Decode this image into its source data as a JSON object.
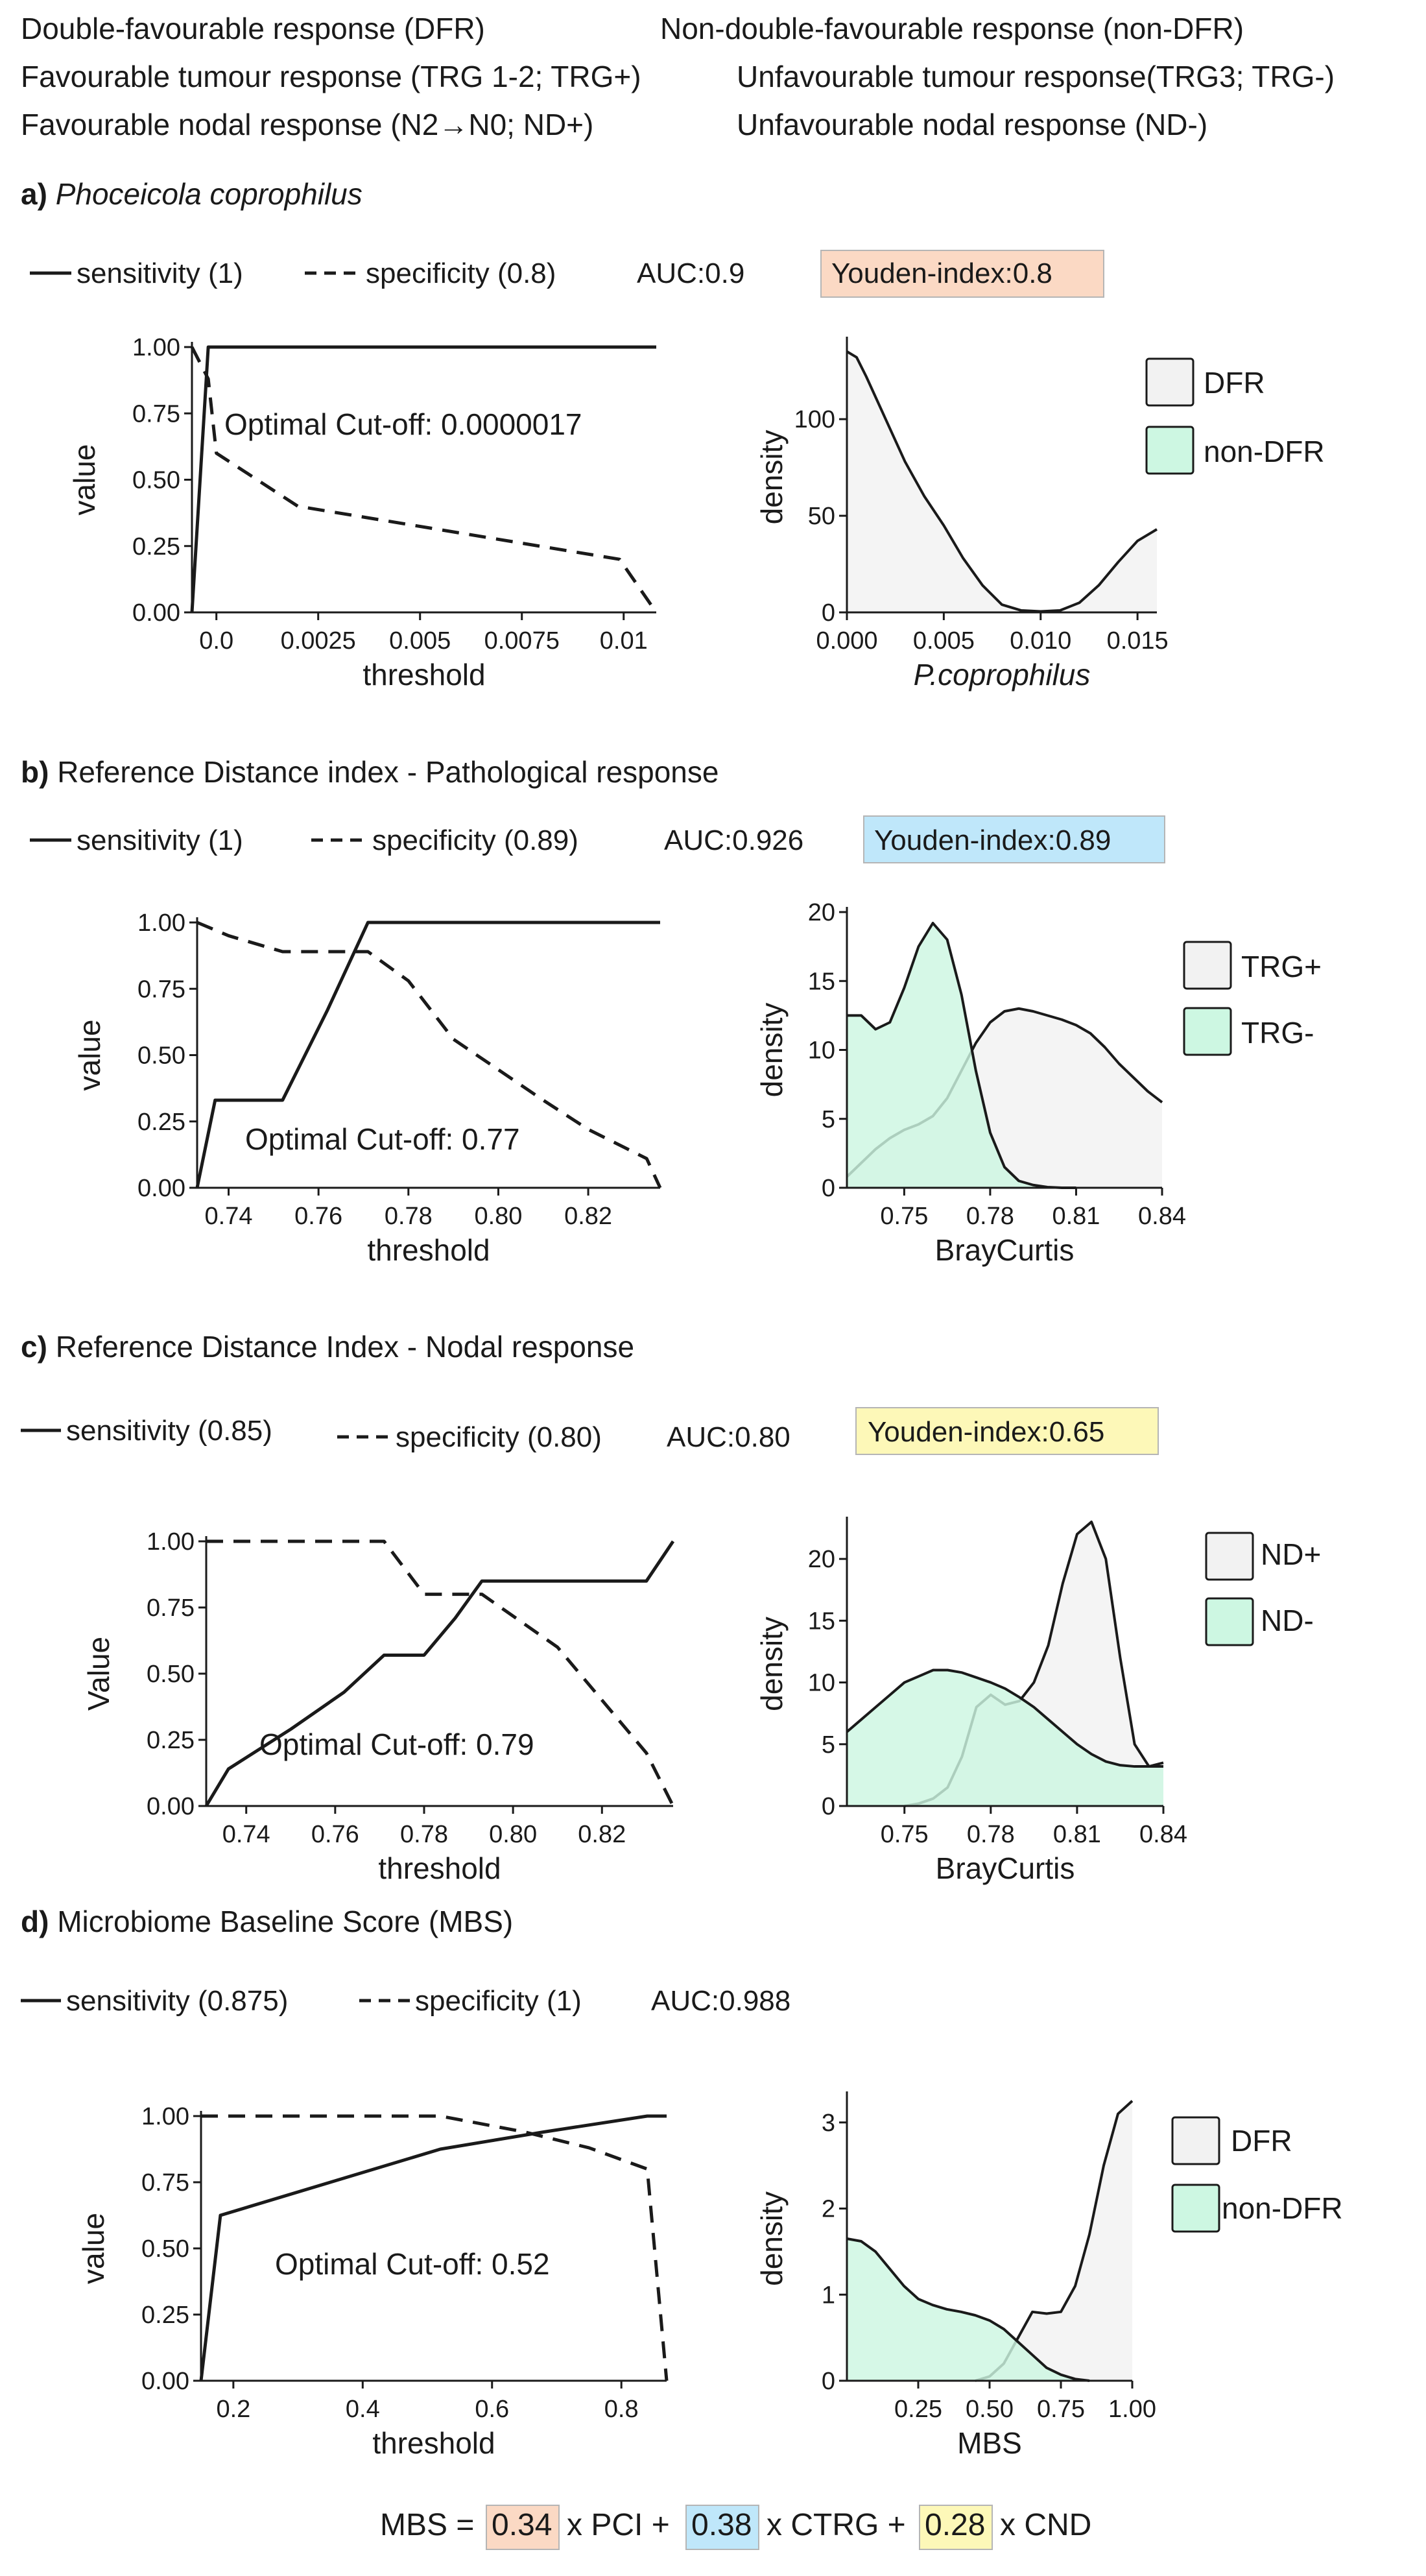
{
  "header": {
    "dfr": "Double-favourable response (DFR)",
    "non_dfr": "Non-double-favourable response (non-DFR)",
    "trg_pos": "Favourable tumour response (TRG 1-2; TRG+)",
    "trg_neg": "Unfavourable tumour response(TRG3; TRG-)",
    "nd_pos": "Favourable nodal response (N2→N0; ND+)",
    "nd_neg": "Unfavourable nodal response (ND-)"
  },
  "colors": {
    "group_a": "#f2f2f2",
    "group_b": "#cdf7e2",
    "youden_a": "#fbd9c4",
    "youden_b": "#bfe7fa",
    "youden_c": "#fdf8b8",
    "line": "#1a1a1a"
  },
  "panels": [
    {
      "letter": "a)",
      "title": "Phoceicola coprophilus",
      "title_italic": true,
      "sens_label": "sensitivity (1)",
      "spec_label": "specificity (0.8)",
      "auc": "AUC:0.9",
      "youden": "Youden-index:0.8",
      "youden_color": "#fbd9c4",
      "cutoff": "Optimal Cut-off: 0.0000017"
    },
    {
      "letter": "b)",
      "title": "Reference Distance index - Pathological response",
      "title_italic": false,
      "sens_label": "sensitivity (1)",
      "spec_label": "specificity (0.89)",
      "auc": "AUC:0.926",
      "youden": "Youden-index:0.89",
      "youden_color": "#bfe7fa",
      "cutoff": "Optimal Cut-off: 0.77"
    },
    {
      "letter": "c)",
      "title": "Reference Distance Index - Nodal response",
      "title_italic": false,
      "sens_label": "sensitivity (0.85)",
      "spec_label": "specificity (0.80)",
      "auc": "AUC:0.80",
      "youden": "Youden-index:0.65",
      "youden_color": "#fdf8b8",
      "cutoff": "Optimal Cut-off: 0.79"
    },
    {
      "letter": "d)",
      "title": "Microbiome Baseline Score (MBS)",
      "title_italic": false,
      "sens_label": "sensitivity (0.875)",
      "spec_label": "specificity (1)",
      "auc": "AUC:0.988",
      "youden": "",
      "youden_color": "",
      "cutoff": "Optimal Cut-off: 0.52"
    }
  ],
  "formula": {
    "lhs": "MBS =",
    "w1": "0.34",
    "t1": "x PCI +",
    "w2": "0.38",
    "t2": "x CTRG +",
    "w3": "0.28",
    "t3": "x CND"
  },
  "chart_data": [
    {
      "id": "a-roc",
      "type": "line",
      "xlabel": "threshold",
      "ylabel": "value",
      "xlim": [
        -0.0006,
        0.0108
      ],
      "ylim": [
        0,
        1
      ],
      "xticks": [
        0,
        0.0025,
        0.005,
        0.0075,
        0.01
      ],
      "xtick_labels": [
        "0.0",
        "0.0025",
        "0.005",
        "0.0075",
        "0.01"
      ],
      "yticks": [
        0,
        0.25,
        0.5,
        0.75,
        1
      ],
      "ytick_labels": [
        "0.00",
        "0.25",
        "0.50",
        "0.75",
        "1.00"
      ],
      "series": [
        {
          "style": "solid",
          "x": [
            -0.0006,
            -0.0002,
            0,
            0.0108
          ],
          "y": [
            0,
            1,
            1,
            1
          ]
        },
        {
          "style": "dashed",
          "x": [
            -0.0006,
            -0.0002,
            0,
            0.002,
            0.0099,
            0.0108
          ],
          "y": [
            1,
            0.88,
            0.6,
            0.4,
            0.2,
            0
          ]
        }
      ]
    },
    {
      "id": "a-dens",
      "type": "area",
      "xlabel": "P.coprophilus",
      "xlabel_italic": true,
      "ylabel": "density",
      "xlim": [
        0,
        0.016
      ],
      "ylim": [
        0,
        140
      ],
      "xticks": [
        0,
        0.005,
        0.01,
        0.015
      ],
      "xtick_labels": [
        "0.000",
        "0.005",
        "0.010",
        "0.015"
      ],
      "yticks": [
        0,
        50,
        100
      ],
      "ytick_labels": [
        "0",
        "50",
        "100"
      ],
      "legend": [
        "DFR",
        "non-DFR"
      ],
      "series": [
        {
          "name": "DFR",
          "group": "a",
          "x": [
            0,
            0.0005,
            0.001,
            0.002,
            0.003,
            0.004,
            0.005,
            0.006,
            0.007,
            0.008,
            0.009,
            0.01,
            0.011,
            0.012,
            0.013,
            0.014,
            0.015,
            0.016
          ],
          "y": [
            135,
            132,
            122,
            100,
            78,
            60,
            45,
            28,
            14,
            4,
            1,
            0.5,
            1,
            5,
            14,
            26,
            37,
            43
          ]
        }
      ]
    },
    {
      "id": "b-roc",
      "type": "line",
      "xlabel": "threshold",
      "ylabel": "value",
      "xlim": [
        0.733,
        0.836
      ],
      "ylim": [
        0,
        1
      ],
      "xticks": [
        0.74,
        0.76,
        0.78,
        0.8,
        0.82
      ],
      "xtick_labels": [
        "0.74",
        "0.76",
        "0.78",
        "0.80",
        "0.82"
      ],
      "yticks": [
        0,
        0.25,
        0.5,
        0.75,
        1
      ],
      "ytick_labels": [
        "0.00",
        "0.25",
        "0.50",
        "0.75",
        "1.00"
      ],
      "series": [
        {
          "style": "solid",
          "x": [
            0.733,
            0.737,
            0.752,
            0.762,
            0.771,
            0.8,
            0.836
          ],
          "y": [
            0,
            0.33,
            0.33,
            0.67,
            1,
            1,
            1
          ]
        },
        {
          "style": "dashed",
          "x": [
            0.733,
            0.74,
            0.752,
            0.771,
            0.78,
            0.79,
            0.81,
            0.82,
            0.833,
            0.836
          ],
          "y": [
            1,
            0.95,
            0.89,
            0.89,
            0.78,
            0.56,
            0.33,
            0.22,
            0.11,
            0
          ]
        }
      ]
    },
    {
      "id": "b-dens",
      "type": "area",
      "xlabel": "BrayCurtis",
      "ylabel": "density",
      "xlim": [
        0.73,
        0.84
      ],
      "ylim": [
        0,
        20
      ],
      "xticks": [
        0.75,
        0.78,
        0.81,
        0.84
      ],
      "xtick_labels": [
        "0.75",
        "0.78",
        "0.81",
        "0.84"
      ],
      "yticks": [
        0,
        5,
        10,
        15,
        20
      ],
      "ytick_labels": [
        "0",
        "5",
        "10",
        "15",
        "20"
      ],
      "legend": [
        "TRG+",
        "TRG-"
      ],
      "series": [
        {
          "name": "TRG+",
          "group": "a",
          "x": [
            0.73,
            0.735,
            0.74,
            0.745,
            0.75,
            0.755,
            0.76,
            0.765,
            0.77,
            0.775,
            0.78,
            0.785,
            0.79,
            0.795,
            0.8,
            0.805,
            0.81,
            0.815,
            0.82,
            0.825,
            0.83,
            0.835,
            0.84
          ],
          "y": [
            0.8,
            1.8,
            2.8,
            3.6,
            4.2,
            4.6,
            5.2,
            6.5,
            8.5,
            10.5,
            12,
            12.8,
            13,
            12.8,
            12.5,
            12.2,
            11.8,
            11.2,
            10.2,
            9,
            8,
            7,
            6.2
          ]
        },
        {
          "name": "TRG-",
          "group": "b",
          "x": [
            0.73,
            0.735,
            0.74,
            0.745,
            0.75,
            0.755,
            0.76,
            0.765,
            0.77,
            0.775,
            0.78,
            0.785,
            0.79,
            0.795,
            0.8,
            0.805,
            0.81
          ],
          "y": [
            12.5,
            12.5,
            11.5,
            12,
            14.5,
            17.5,
            19.2,
            18,
            14,
            8.5,
            4,
            1.5,
            0.5,
            0.2,
            0.05,
            0,
            0
          ]
        }
      ]
    },
    {
      "id": "c-roc",
      "type": "line",
      "xlabel": "threshold",
      "ylabel": "Value",
      "xlim": [
        0.731,
        0.836
      ],
      "ylim": [
        0,
        1
      ],
      "xticks": [
        0.74,
        0.76,
        0.78,
        0.8,
        0.82
      ],
      "xtick_labels": [
        "0.74",
        "0.76",
        "0.78",
        "0.80",
        "0.82"
      ],
      "yticks": [
        0,
        0.25,
        0.5,
        0.75,
        1
      ],
      "ytick_labels": [
        "0.00",
        "0.25",
        "0.50",
        "0.75",
        "1.00"
      ],
      "series": [
        {
          "style": "solid",
          "x": [
            0.731,
            0.736,
            0.75,
            0.762,
            0.771,
            0.78,
            0.787,
            0.793,
            0.81,
            0.83,
            0.836
          ],
          "y": [
            0,
            0.14,
            0.29,
            0.43,
            0.57,
            0.57,
            0.71,
            0.85,
            0.85,
            0.85,
            1
          ]
        },
        {
          "style": "dashed",
          "x": [
            0.731,
            0.75,
            0.771,
            0.78,
            0.787,
            0.793,
            0.81,
            0.82,
            0.83,
            0.836
          ],
          "y": [
            1,
            1,
            1,
            0.8,
            0.8,
            0.8,
            0.6,
            0.4,
            0.2,
            0
          ]
        }
      ]
    },
    {
      "id": "c-dens",
      "type": "area",
      "xlabel": "BrayCurtis",
      "ylabel": "density",
      "xlim": [
        0.73,
        0.84
      ],
      "ylim": [
        0,
        23
      ],
      "xticks": [
        0.75,
        0.78,
        0.81,
        0.84
      ],
      "xtick_labels": [
        "0.75",
        "0.78",
        "0.81",
        "0.84"
      ],
      "yticks": [
        0,
        5,
        10,
        15,
        20
      ],
      "ytick_labels": [
        "0",
        "5",
        "10",
        "15",
        "20"
      ],
      "legend": [
        "ND+",
        "ND-"
      ],
      "series": [
        {
          "name": "ND+",
          "group": "a",
          "x": [
            0.75,
            0.755,
            0.76,
            0.765,
            0.77,
            0.775,
            0.78,
            0.785,
            0.79,
            0.795,
            0.8,
            0.805,
            0.81,
            0.815,
            0.82,
            0.825,
            0.83,
            0.835,
            0.84
          ],
          "y": [
            0,
            0.2,
            0.6,
            1.5,
            4,
            8,
            9,
            8.2,
            8.5,
            10,
            13,
            18,
            22,
            23,
            20,
            12,
            5,
            3.2,
            3.5
          ]
        },
        {
          "name": "ND-",
          "group": "b",
          "x": [
            0.73,
            0.735,
            0.74,
            0.745,
            0.75,
            0.755,
            0.76,
            0.765,
            0.77,
            0.775,
            0.78,
            0.785,
            0.79,
            0.795,
            0.8,
            0.805,
            0.81,
            0.815,
            0.82,
            0.825,
            0.83,
            0.835,
            0.84
          ],
          "y": [
            6,
            7,
            8,
            9,
            10,
            10.5,
            11,
            11,
            10.8,
            10.4,
            10,
            9.5,
            8.8,
            8,
            7,
            6,
            5,
            4.2,
            3.6,
            3.3,
            3.2,
            3.2,
            3.2
          ]
        }
      ]
    },
    {
      "id": "d-roc",
      "type": "line",
      "xlabel": "threshold",
      "ylabel": "value",
      "xlim": [
        0.15,
        0.87
      ],
      "ylim": [
        0,
        1
      ],
      "xticks": [
        0.2,
        0.4,
        0.6,
        0.8
      ],
      "xtick_labels": [
        "0.2",
        "0.4",
        "0.6",
        "0.8"
      ],
      "yticks": [
        0,
        0.25,
        0.5,
        0.75,
        1
      ],
      "ytick_labels": [
        "0.00",
        "0.25",
        "0.50",
        "0.75",
        "1.00"
      ],
      "series": [
        {
          "style": "solid",
          "x": [
            0.15,
            0.18,
            0.35,
            0.52,
            0.68,
            0.84,
            0.87
          ],
          "y": [
            0,
            0.625,
            0.75,
            0.875,
            0.94,
            1,
            1
          ]
        },
        {
          "style": "dashed",
          "x": [
            0.15,
            0.35,
            0.52,
            0.65,
            0.75,
            0.84,
            0.87
          ],
          "y": [
            1,
            1,
            1,
            0.94,
            0.88,
            0.8,
            0
          ]
        }
      ]
    },
    {
      "id": "d-dens",
      "type": "area",
      "xlabel": "MBS",
      "ylabel": "density",
      "xlim": [
        0,
        1
      ],
      "ylim": [
        0,
        3.3
      ],
      "xticks": [
        0.25,
        0.5,
        0.75,
        1
      ],
      "xtick_labels": [
        "0.25",
        "0.50",
        "0.75",
        "1.00"
      ],
      "yticks": [
        0,
        1,
        2,
        3
      ],
      "ytick_labels": [
        "0",
        "1",
        "2",
        "3"
      ],
      "legend": [
        "DFR",
        "non-DFR"
      ],
      "series": [
        {
          "name": "DFR",
          "group": "a",
          "x": [
            0.45,
            0.5,
            0.55,
            0.6,
            0.65,
            0.7,
            0.75,
            0.8,
            0.85,
            0.9,
            0.95,
            1.0
          ],
          "y": [
            0,
            0.05,
            0.2,
            0.5,
            0.8,
            0.78,
            0.8,
            1.1,
            1.7,
            2.5,
            3.1,
            3.25
          ]
        },
        {
          "name": "non-DFR",
          "group": "b",
          "x": [
            0,
            0.05,
            0.1,
            0.15,
            0.2,
            0.25,
            0.3,
            0.35,
            0.4,
            0.45,
            0.5,
            0.55,
            0.6,
            0.65,
            0.7,
            0.75,
            0.8,
            0.85
          ],
          "y": [
            1.65,
            1.62,
            1.5,
            1.3,
            1.1,
            0.95,
            0.88,
            0.83,
            0.8,
            0.76,
            0.7,
            0.6,
            0.45,
            0.3,
            0.15,
            0.07,
            0.02,
            0
          ]
        }
      ]
    }
  ]
}
